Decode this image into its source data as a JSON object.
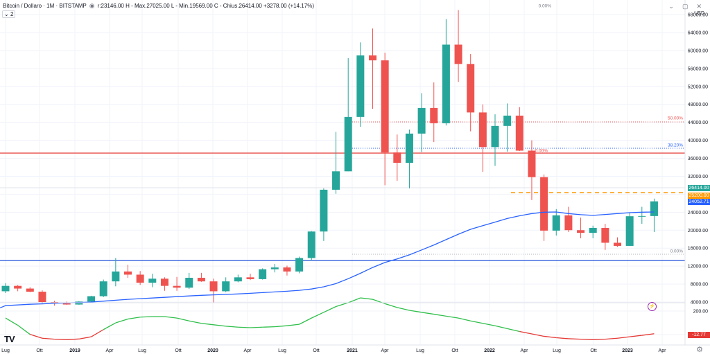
{
  "header": {
    "symbol": "Bitcoin / Dollaro · 1M · BITSTAMP",
    "ohlc": "r:23146.00 H - Max.27025.00 L - Min.19569.00 C - Chius.26414.00 +3278.00 (+14.17%)",
    "study_count": "2",
    "currency": "USD"
  },
  "colors": {
    "up": "#26a69a",
    "down": "#ef5350",
    "ma": "#2962ff",
    "hline_red": "#e53935",
    "hline_blue": "#1e4fd9",
    "osc_high": "#2fbf4a",
    "osc_low": "#e53935",
    "dashed": "#ff9800"
  },
  "chart_data": {
    "type": "candlestick",
    "y_axis_ticks": [
      "68000.00",
      "64000.00",
      "60000.00",
      "56000.00",
      "52000.00",
      "48000.00",
      "44000.00",
      "40000.00",
      "36000.00",
      "32000.00",
      "28000.00",
      "24000.00",
      "20000.00",
      "16000.00",
      "12000.00",
      "8000.00",
      "4000.00",
      "200.00",
      "-12.77"
    ],
    "x_axis_ticks": [
      "Lug",
      "Ott",
      "2019",
      "Apr",
      "Lug",
      "Ott",
      "2020",
      "Apr",
      "Lug",
      "Ott",
      "2021",
      "Apr",
      "Lug",
      "Ott",
      "2022",
      "Apr",
      "Lug",
      "Ott",
      "2023",
      "Apr"
    ],
    "price_labels": {
      "last": "26414.00",
      "line_orange": "25200.00",
      "ma": "24052.71",
      "osc": "-12.77"
    },
    "fib_labels": [
      "0.00%",
      "50.00%",
      "38.20%",
      "0.00%",
      "0.00%"
    ],
    "candles": [
      {
        "o": 6400,
        "h": 8200,
        "l": 6000,
        "c": 7600
      },
      {
        "o": 7600,
        "h": 7800,
        "l": 6400,
        "c": 7000
      },
      {
        "o": 7000,
        "h": 7300,
        "l": 6200,
        "c": 6300
      },
      {
        "o": 6300,
        "h": 6600,
        "l": 3500,
        "c": 4000
      },
      {
        "o": 4000,
        "h": 4300,
        "l": 3200,
        "c": 3700
      },
      {
        "o": 3700,
        "h": 4100,
        "l": 3400,
        "c": 3450
      },
      {
        "o": 3450,
        "h": 4200,
        "l": 3400,
        "c": 4100
      },
      {
        "o": 4100,
        "h": 5400,
        "l": 3900,
        "c": 5300
      },
      {
        "o": 5300,
        "h": 9000,
        "l": 5100,
        "c": 8600
      },
      {
        "o": 8600,
        "h": 13800,
        "l": 7500,
        "c": 10800
      },
      {
        "o": 10800,
        "h": 12300,
        "l": 9400,
        "c": 10100
      },
      {
        "o": 10100,
        "h": 10900,
        "l": 7800,
        "c": 8300
      },
      {
        "o": 8300,
        "h": 10300,
        "l": 7300,
        "c": 9200
      },
      {
        "o": 9200,
        "h": 9500,
        "l": 6500,
        "c": 7600
      },
      {
        "o": 7600,
        "h": 9600,
        "l": 6500,
        "c": 7200
      },
      {
        "o": 7200,
        "h": 10500,
        "l": 6900,
        "c": 9400
      },
      {
        "o": 9400,
        "h": 10500,
        "l": 8500,
        "c": 8600
      },
      {
        "o": 8600,
        "h": 9200,
        "l": 3900,
        "c": 6400
      },
      {
        "o": 6400,
        "h": 9500,
        "l": 6200,
        "c": 8600
      },
      {
        "o": 8600,
        "h": 10100,
        "l": 8400,
        "c": 9500
      },
      {
        "o": 9500,
        "h": 10300,
        "l": 8900,
        "c": 9100
      },
      {
        "o": 9100,
        "h": 11500,
        "l": 9000,
        "c": 11300
      },
      {
        "o": 11300,
        "h": 12500,
        "l": 10600,
        "c": 11700
      },
      {
        "o": 11700,
        "h": 12100,
        "l": 9900,
        "c": 10800
      },
      {
        "o": 10800,
        "h": 14100,
        "l": 10400,
        "c": 13800
      },
      {
        "o": 13800,
        "h": 19800,
        "l": 13200,
        "c": 19700
      },
      {
        "o": 19700,
        "h": 29300,
        "l": 17600,
        "c": 29000
      },
      {
        "o": 29000,
        "h": 41900,
        "l": 28100,
        "c": 33100
      },
      {
        "o": 33100,
        "h": 58300,
        "l": 33100,
        "c": 45200
      },
      {
        "o": 45200,
        "h": 61800,
        "l": 43000,
        "c": 58900
      },
      {
        "o": 58900,
        "h": 64900,
        "l": 47000,
        "c": 57800
      },
      {
        "o": 57800,
        "h": 59500,
        "l": 30000,
        "c": 37300
      },
      {
        "o": 37300,
        "h": 41300,
        "l": 31000,
        "c": 35000
      },
      {
        "o": 35000,
        "h": 42400,
        "l": 29300,
        "c": 41500
      },
      {
        "o": 41500,
        "h": 50500,
        "l": 37400,
        "c": 47200
      },
      {
        "o": 47200,
        "h": 52900,
        "l": 39600,
        "c": 43800
      },
      {
        "o": 43800,
        "h": 67000,
        "l": 43300,
        "c": 61300
      },
      {
        "o": 61300,
        "h": 69000,
        "l": 53000,
        "c": 57000
      },
      {
        "o": 57000,
        "h": 59200,
        "l": 42000,
        "c": 46200
      },
      {
        "o": 46200,
        "h": 48000,
        "l": 33000,
        "c": 38500
      },
      {
        "o": 38500,
        "h": 45800,
        "l": 34300,
        "c": 43200
      },
      {
        "o": 43200,
        "h": 48200,
        "l": 37500,
        "c": 45500
      },
      {
        "o": 45500,
        "h": 47400,
        "l": 37600,
        "c": 37700
      },
      {
        "o": 37700,
        "h": 40000,
        "l": 26700,
        "c": 31800
      },
      {
        "o": 31800,
        "h": 32400,
        "l": 17600,
        "c": 19900
      },
      {
        "o": 19900,
        "h": 24700,
        "l": 18800,
        "c": 23300
      },
      {
        "o": 23300,
        "h": 25200,
        "l": 19600,
        "c": 20000
      },
      {
        "o": 20000,
        "h": 22800,
        "l": 18200,
        "c": 19400
      },
      {
        "o": 19400,
        "h": 21000,
        "l": 18200,
        "c": 20500
      },
      {
        "o": 20500,
        "h": 21400,
        "l": 15600,
        "c": 17200
      },
      {
        "o": 17200,
        "h": 18400,
        "l": 16300,
        "c": 16500
      },
      {
        "o": 16500,
        "h": 23900,
        "l": 16500,
        "c": 23100
      },
      {
        "o": 23100,
        "h": 25200,
        "l": 21400,
        "c": 23150
      },
      {
        "o": 23146,
        "h": 27025,
        "l": 19569,
        "c": 26414
      }
    ],
    "moving_average": [
      3200,
      3350,
      3500,
      3600,
      3700,
      3800,
      3900,
      4000,
      4200,
      4400,
      4600,
      4750,
      4900,
      5050,
      5200,
      5350,
      5500,
      5600,
      5700,
      5800,
      5950,
      6100,
      6250,
      6400,
      6600,
      6900,
      7400,
      8100,
      9200,
      10400,
      11700,
      12800,
      13600,
      14500,
      15600,
      16700,
      17900,
      19100,
      20200,
      21000,
      21800,
      22600,
      23200,
      23700,
      24000,
      24050,
      23700,
      23450,
      23300,
      23500,
      23700,
      23900,
      24000,
      24052
    ],
    "oscillator": [
      150,
      75,
      -20,
      -60,
      -70,
      -75,
      -68,
      -45,
      30,
      100,
      140,
      160,
      165,
      165,
      150,
      120,
      95,
      80,
      65,
      55,
      50,
      55,
      60,
      70,
      85,
      150,
      210,
      270,
      310,
      360,
      345,
      300,
      260,
      230,
      210,
      190,
      170,
      150,
      120,
      95,
      70,
      40,
      10,
      -15,
      -40,
      -55,
      -65,
      -70,
      -75,
      -70,
      -60,
      -45,
      -30,
      -13
    ]
  }
}
